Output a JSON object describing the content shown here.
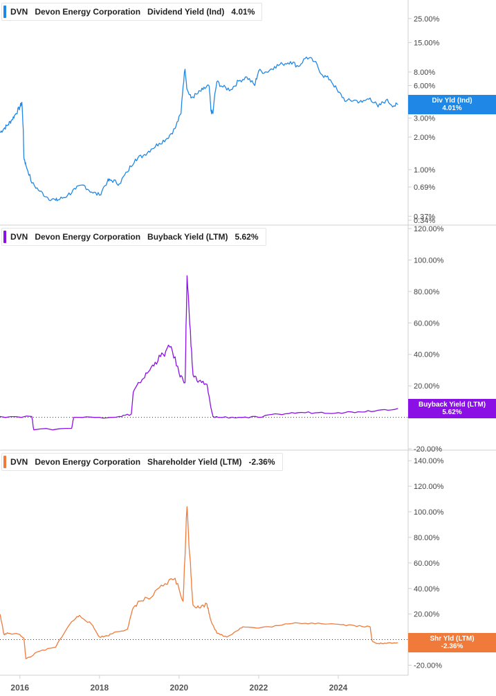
{
  "chart_data": [
    {
      "type": "line",
      "ticker": "DVN",
      "company": "Devon Energy Corporation",
      "metric": "Dividend Yield (Ind)",
      "last_value": "4.01%",
      "flag_label": "Div Yld (Ind)",
      "color": "#1f87e5",
      "scale": "log",
      "ylim": [
        0.34,
        35
      ],
      "y_ticks": [
        "25.00%",
        "15.00%",
        "8.00%",
        "6.00%",
        "3.00%",
        "2.00%",
        "1.00%",
        "0.69%",
        "0.37%",
        "0.34%"
      ],
      "y_tick_values": [
        25,
        15,
        8,
        6,
        3,
        2,
        1,
        0.69,
        0.37,
        0.34
      ],
      "series": [
        {
          "x": [
            2015.5,
            2015.6,
            2015.7,
            2015.8,
            2015.9,
            2016.0,
            2016.05,
            2016.1,
            2016.15,
            2016.3,
            2016.5,
            2016.7,
            2016.9,
            2017.0,
            2017.2,
            2017.4,
            2017.6,
            2017.8,
            2018.0,
            2018.2,
            2018.3,
            2018.5,
            2018.7,
            2018.9,
            2019.1,
            2019.3,
            2019.5,
            2019.7,
            2019.9,
            2020.05,
            2020.15,
            2020.2,
            2020.3,
            2020.45,
            2020.6,
            2020.75,
            2020.8,
            2020.85,
            2020.95,
            2021.1,
            2021.3,
            2021.5,
            2021.7,
            2021.9,
            2022.0,
            2022.2,
            2022.4,
            2022.6,
            2022.8,
            2023.0,
            2023.2,
            2023.4,
            2023.6,
            2023.8,
            2024.0,
            2024.2,
            2024.4,
            2024.6,
            2024.8,
            2025.0,
            2025.2,
            2025.4,
            2025.5
          ],
          "y": [
            2.2,
            2.4,
            2.6,
            2.9,
            3.3,
            3.8,
            4.2,
            1.3,
            1.1,
            0.75,
            0.63,
            0.55,
            0.52,
            0.53,
            0.58,
            0.66,
            0.72,
            0.62,
            0.58,
            0.78,
            0.8,
            0.74,
            0.95,
            1.25,
            1.35,
            1.55,
            1.75,
            1.95,
            2.4,
            3.3,
            8.5,
            5.5,
            4.6,
            5.0,
            5.5,
            6.0,
            3.5,
            3.3,
            6.5,
            5.8,
            5.5,
            6.6,
            7.2,
            6.0,
            8.2,
            8.0,
            9.0,
            9.5,
            10.0,
            9.0,
            11.0,
            10.0,
            7.5,
            6.8,
            5.2,
            4.3,
            4.4,
            4.2,
            4.6,
            3.8,
            4.4,
            3.9,
            4.01
          ]
        }
      ]
    },
    {
      "type": "line",
      "ticker": "DVN",
      "company": "Devon Energy Corporation",
      "metric": "Buyback Yield (LTM)",
      "last_value": "5.62%",
      "flag_label": "Buyback Yield (LTM)",
      "color": "#8a10e6",
      "scale": "linear",
      "ylim": [
        -20,
        120
      ],
      "y_ticks": [
        "120.00%",
        "100.00%",
        "80.00%",
        "60.00%",
        "40.00%",
        "20.00%",
        "-20.00%"
      ],
      "y_tick_values": [
        120,
        100,
        80,
        60,
        40,
        20,
        -20
      ],
      "series": [
        {
          "x": [
            2015.5,
            2016.3,
            2016.35,
            2017.3,
            2017.35,
            2018.0,
            2018.5,
            2018.8,
            2018.85,
            2019.0,
            2019.2,
            2019.4,
            2019.6,
            2019.8,
            2020.0,
            2020.15,
            2020.2,
            2020.3,
            2020.35,
            2020.5,
            2020.7,
            2020.8,
            2020.85,
            2021.0,
            2021.5,
            2022.0,
            2022.5,
            2023.0,
            2023.5,
            2024.0,
            2024.5,
            2025.0,
            2025.5
          ],
          "y": [
            0.5,
            0.5,
            -8,
            -7,
            0,
            0,
            0.5,
            2,
            16,
            22,
            28,
            35,
            40,
            45,
            28,
            22,
            90,
            45,
            27,
            23,
            21,
            6,
            0.5,
            0,
            0,
            0,
            2,
            3,
            3,
            3,
            3.5,
            4.5,
            5.62
          ]
        }
      ]
    },
    {
      "type": "line",
      "ticker": "DVN",
      "company": "Devon Energy Corporation",
      "metric": "Shareholder Yield (LTM)",
      "last_value": "-2.36%",
      "flag_label": "Shr Yld (LTM)",
      "color": "#f07a3a",
      "scale": "linear",
      "ylim": [
        -23,
        145
      ],
      "y_ticks": [
        "140.00%",
        "120.00%",
        "100.00%",
        "80.00%",
        "60.00%",
        "40.00%",
        "20.00%",
        "0.0",
        "-20.00%"
      ],
      "y_tick_values": [
        140,
        120,
        100,
        80,
        60,
        40,
        20,
        0,
        -20
      ],
      "series": [
        {
          "x": [
            2015.5,
            2015.6,
            2015.7,
            2016.0,
            2016.1,
            2016.15,
            2016.5,
            2016.9,
            2017.0,
            2017.3,
            2017.5,
            2017.8,
            2018.0,
            2018.2,
            2018.4,
            2018.7,
            2018.85,
            2019.0,
            2019.3,
            2019.6,
            2019.9,
            2020.1,
            2020.2,
            2020.3,
            2020.35,
            2020.5,
            2020.7,
            2020.8,
            2020.95,
            2021.2,
            2021.4,
            2021.6,
            2022.0,
            2022.5,
            2023.0,
            2023.5,
            2024.0,
            2024.4,
            2024.8,
            2024.85,
            2025.0,
            2025.2,
            2025.5
          ],
          "y": [
            20,
            4,
            5,
            4,
            1,
            -15,
            -9,
            -6,
            0,
            14,
            19,
            12,
            2,
            3,
            6,
            8,
            25,
            30,
            33,
            42,
            48,
            30,
            104,
            50,
            27,
            25,
            28,
            15,
            5,
            2,
            6,
            10,
            9,
            11,
            13,
            13,
            12,
            11,
            10,
            -1,
            -3,
            -3,
            -2.36
          ]
        }
      ]
    }
  ],
  "x_axis": {
    "ticks": [
      "2016",
      "2018",
      "2020",
      "2022",
      "2024"
    ],
    "tick_values": [
      2016,
      2018,
      2020,
      2022,
      2024
    ],
    "xlim": [
      2015.5,
      2025.5
    ]
  }
}
